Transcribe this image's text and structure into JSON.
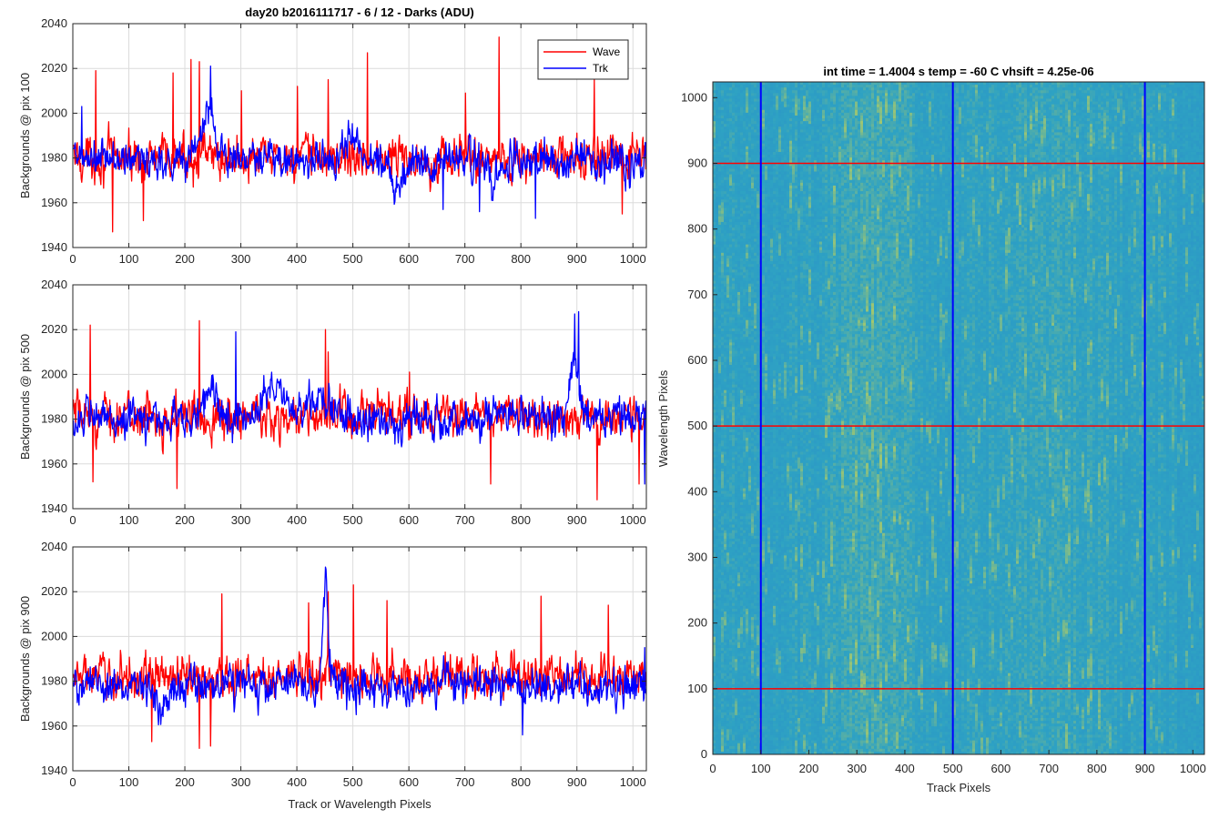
{
  "chart_data": [
    {
      "type": "line",
      "title": "day20 b2016111717 - 6 / 12 - Darks (ADU)",
      "ylabel": "Backgrounds @ pix 100",
      "xlabel": "",
      "xlim": [
        0,
        1024
      ],
      "ylim": [
        1940,
        2040
      ],
      "xticks": [
        "0",
        "100",
        "200",
        "300",
        "400",
        "500",
        "600",
        "700",
        "800",
        "900",
        "1000"
      ],
      "yticks": [
        "1940",
        "1960",
        "1980",
        "2000",
        "2020",
        "2040"
      ],
      "grid": true,
      "legend": {
        "location": "top-right",
        "entries": [
          "Wave",
          "Trk"
        ]
      },
      "series": [
        {
          "name": "Wave",
          "color": "#ff0000",
          "baseline": 1980,
          "noise": 8,
          "spikes": [
            [
              40,
              2019
            ],
            [
              70,
              1947
            ],
            [
              125,
              1952
            ],
            [
              178,
              2018
            ],
            [
              210,
              2024
            ],
            [
              225,
              2023
            ],
            [
              300,
              2010
            ],
            [
              400,
              2012
            ],
            [
              455,
              2015
            ],
            [
              525,
              2027
            ],
            [
              700,
              2009
            ],
            [
              760,
              2034
            ],
            [
              930,
              2015
            ],
            [
              980,
              1955
            ]
          ],
          "bumps": []
        },
        {
          "name": "Trk",
          "color": "#0000ff",
          "baseline": 1979,
          "noise": 7,
          "spikes": [
            [
              15,
              2003
            ],
            [
              245,
              2021
            ],
            [
              660,
              1957
            ],
            [
              725,
              1956
            ],
            [
              825,
              1953
            ]
          ],
          "bumps": [
            [
              240,
              40,
              20
            ],
            [
              495,
              40,
              10
            ],
            [
              580,
              30,
              -10
            ],
            [
              750,
              25,
              -12
            ]
          ]
        }
      ]
    },
    {
      "type": "line",
      "title": "",
      "ylabel": "Backgrounds @ pix 500",
      "xlabel": "",
      "xlim": [
        0,
        1024
      ],
      "ylim": [
        1940,
        2040
      ],
      "xticks": [
        "0",
        "100",
        "200",
        "300",
        "400",
        "500",
        "600",
        "700",
        "800",
        "900",
        "1000"
      ],
      "yticks": [
        "1940",
        "1960",
        "1980",
        "2000",
        "2020",
        "2040"
      ],
      "grid": true,
      "series": [
        {
          "name": "Wave",
          "color": "#ff0000",
          "baseline": 1981,
          "noise": 8,
          "spikes": [
            [
              30,
              2022
            ],
            [
              35,
              1952
            ],
            [
              185,
              1949
            ],
            [
              225,
              2024
            ],
            [
              450,
              2020
            ],
            [
              455,
              2010
            ],
            [
              600,
              2001
            ],
            [
              745,
              1951
            ],
            [
              935,
              1944
            ],
            [
              1010,
              1951
            ]
          ],
          "bumps": []
        },
        {
          "name": "Trk",
          "color": "#0000ff",
          "baseline": 1980,
          "noise": 7,
          "spikes": [
            [
              290,
              2019
            ],
            [
              895,
              2027
            ],
            [
              902,
              2028
            ],
            [
              1020,
              1951
            ]
          ],
          "bumps": [
            [
              245,
              30,
              14
            ],
            [
              360,
              70,
              13
            ],
            [
              440,
              40,
              12
            ],
            [
              895,
              20,
              28
            ]
          ]
        }
      ]
    },
    {
      "type": "line",
      "title": "",
      "ylabel": "Backgrounds @ pix 900",
      "xlabel": "Track or Wavelength Pixels",
      "xlim": [
        0,
        1024
      ],
      "ylim": [
        1940,
        2040
      ],
      "xticks": [
        "0",
        "100",
        "200",
        "300",
        "400",
        "500",
        "600",
        "700",
        "800",
        "900",
        "1000"
      ],
      "yticks": [
        "1940",
        "1960",
        "1980",
        "2000",
        "2020",
        "2040"
      ],
      "grid": true,
      "series": [
        {
          "name": "Wave",
          "color": "#ff0000",
          "baseline": 1982,
          "noise": 8,
          "spikes": [
            [
              140,
              1953
            ],
            [
              225,
              1950
            ],
            [
              245,
              1951
            ],
            [
              265,
              2019
            ],
            [
              420,
              2015
            ],
            [
              455,
              2020
            ],
            [
              500,
              2023
            ],
            [
              560,
              2016
            ],
            [
              835,
              2018
            ],
            [
              955,
              2014
            ]
          ],
          "bumps": []
        },
        {
          "name": "Trk",
          "color": "#0000ff",
          "baseline": 1978,
          "noise": 7,
          "spikes": [
            [
              450,
              2031
            ],
            [
              802,
              1956
            ],
            [
              1020,
              1995
            ]
          ],
          "bumps": [
            [
              450,
              15,
              40
            ],
            [
              155,
              25,
              -8
            ]
          ]
        }
      ]
    },
    {
      "type": "heatmap",
      "title": "int time = 1.4004 s    temp = -60 C    vhsift = 4.25e-06",
      "xlabel": "Track Pixels",
      "ylabel": "Wavelength Pixels",
      "xlim": [
        0,
        1024
      ],
      "ylim": [
        0,
        1024
      ],
      "xticks": [
        "0",
        "100",
        "200",
        "300",
        "400",
        "500",
        "600",
        "700",
        "800",
        "900",
        "1000"
      ],
      "yticks": [
        "0",
        "100",
        "200",
        "300",
        "400",
        "500",
        "600",
        "700",
        "800",
        "900",
        "1000"
      ],
      "colormap": {
        "low": "#2a8ec9",
        "mid": "#2ea2c3",
        "high": "#a9c96a"
      },
      "vertical_lines": {
        "color": "#0000ff",
        "x": [
          100,
          500,
          900
        ]
      },
      "horizontal_lines": {
        "color": "#ff0000",
        "y": [
          100,
          500,
          900
        ]
      }
    }
  ]
}
